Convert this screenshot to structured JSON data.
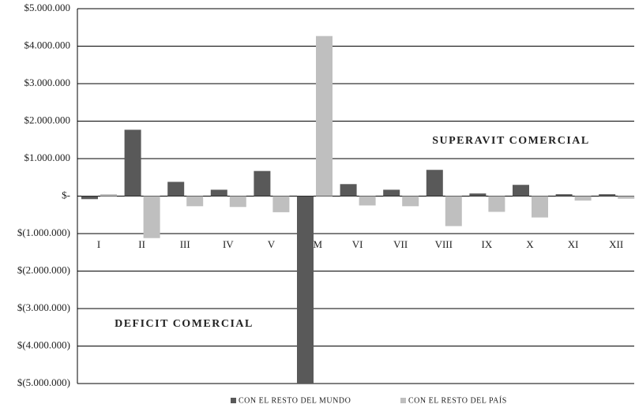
{
  "chart_data": {
    "type": "bar",
    "categories": [
      "I",
      "II",
      "III",
      "IV",
      "V",
      "RM",
      "VI",
      "VII",
      "VIII",
      "IX",
      "X",
      "XI",
      "XII"
    ],
    "series": [
      {
        "name": "CON EL RESTO DEL MUNDO",
        "color": "#595959",
        "values": [
          -80000,
          1770000,
          380000,
          170000,
          670000,
          -5000000,
          320000,
          170000,
          700000,
          70000,
          300000,
          50000,
          50000
        ]
      },
      {
        "name": "CON EL RESTO DEL PAÍS",
        "color": "#bfbfbf",
        "values": [
          50000,
          -1120000,
          -270000,
          -290000,
          -430000,
          4270000,
          -250000,
          -270000,
          -800000,
          -420000,
          -570000,
          -120000,
          -70000
        ]
      }
    ],
    "ylim": [
      -5000000,
      5000000
    ],
    "yticks": [
      {
        "value": -5000000,
        "label": "$(5.000.000)"
      },
      {
        "value": -4000000,
        "label": "$(4.000.000)"
      },
      {
        "value": -3000000,
        "label": "$(3.000.000)"
      },
      {
        "value": -2000000,
        "label": "$(2.000.000)"
      },
      {
        "value": -1000000,
        "label": "$(1.000.000)"
      },
      {
        "value": 0,
        "label": "$-"
      },
      {
        "value": 1000000,
        "label": "$1.000.000"
      },
      {
        "value": 2000000,
        "label": "$2.000.000"
      },
      {
        "value": 3000000,
        "label": "$3.000.000"
      },
      {
        "value": 4000000,
        "label": "$4.000.000"
      },
      {
        "value": 5000000,
        "label": "$5.000.000"
      }
    ],
    "grid": true,
    "annotations": [
      "SUPERAVIT COMERCIAL",
      "DEFICIT COMERCIAL"
    ],
    "legend_position": "bottom"
  }
}
